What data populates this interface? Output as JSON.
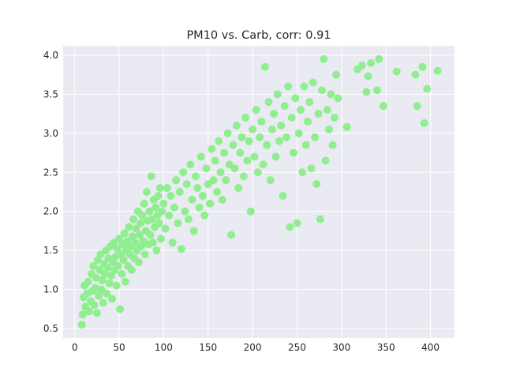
{
  "chart_data": {
    "type": "scatter",
    "title": "PM10 vs. Carb, corr: 0.91",
    "xlabel": "",
    "ylabel": "",
    "xlim": [
      -13,
      427
    ],
    "ylim": [
      0.38,
      4.12
    ],
    "xticks": [
      0,
      50,
      100,
      150,
      200,
      250,
      300,
      350,
      400
    ],
    "yticks": [
      0.5,
      1.0,
      1.5,
      2.0,
      2.5,
      3.0,
      3.5,
      4.0
    ],
    "ytick_labels": [
      "0.5",
      "1.0",
      "1.5",
      "2.0",
      "2.5",
      "3.0",
      "3.5",
      "4.0"
    ],
    "grid": true,
    "legend": "none",
    "colors": {
      "marker": "#90ee90",
      "plot_background": "#eaeaf2",
      "grid": "#ffffff",
      "text": "#262626"
    },
    "series": [
      {
        "points": [
          [
            8,
            0.55
          ],
          [
            9,
            0.68
          ],
          [
            10,
            0.9
          ],
          [
            11,
            1.05
          ],
          [
            12,
            0.78
          ],
          [
            14,
            0.95
          ],
          [
            15,
            1.1
          ],
          [
            16,
            0.72
          ],
          [
            18,
            0.85
          ],
          [
            19,
            1.2
          ],
          [
            20,
            0.98
          ],
          [
            21,
            1.3
          ],
          [
            22,
            0.8
          ],
          [
            23,
            1.02
          ],
          [
            24,
            1.15
          ],
          [
            25,
            0.7
          ],
          [
            26,
            1.38
          ],
          [
            27,
            0.92
          ],
          [
            28,
            1.25
          ],
          [
            29,
            1.45
          ],
          [
            30,
            1.0
          ],
          [
            31,
            1.12
          ],
          [
            32,
            0.83
          ],
          [
            33,
            1.33
          ],
          [
            34,
            1.2
          ],
          [
            35,
            1.5
          ],
          [
            36,
            0.95
          ],
          [
            37,
            1.28
          ],
          [
            38,
            1.4
          ],
          [
            39,
            1.08
          ],
          [
            40,
            1.55
          ],
          [
            41,
            1.18
          ],
          [
            42,
            0.88
          ],
          [
            43,
            1.35
          ],
          [
            44,
            1.6
          ],
          [
            45,
            1.25
          ],
          [
            46,
            1.42
          ],
          [
            47,
            1.05
          ],
          [
            48,
            1.52
          ],
          [
            49,
            1.3
          ],
          [
            50,
            1.65
          ],
          [
            51,
            0.75
          ],
          [
            52,
            1.45
          ],
          [
            53,
            1.2
          ],
          [
            54,
            1.58
          ],
          [
            55,
            1.38
          ],
          [
            56,
            1.72
          ],
          [
            57,
            1.1
          ],
          [
            58,
            1.5
          ],
          [
            59,
            1.62
          ],
          [
            60,
            1.3
          ],
          [
            61,
            1.8
          ],
          [
            62,
            1.45
          ],
          [
            63,
            1.55
          ],
          [
            64,
            1.25
          ],
          [
            65,
            1.68
          ],
          [
            66,
            1.9
          ],
          [
            67,
            1.4
          ],
          [
            68,
            1.6
          ],
          [
            69,
            1.78
          ],
          [
            70,
            1.5
          ],
          [
            71,
            2.0
          ],
          [
            72,
            1.35
          ],
          [
            73,
            1.7
          ],
          [
            74,
            1.85
          ],
          [
            75,
            1.55
          ],
          [
            76,
            1.95
          ],
          [
            77,
            1.62
          ],
          [
            78,
            2.1
          ],
          [
            79,
            1.45
          ],
          [
            80,
            1.75
          ],
          [
            81,
            2.25
          ],
          [
            82,
            1.88
          ],
          [
            83,
            1.58
          ],
          [
            84,
            2.0
          ],
          [
            85,
            1.7
          ],
          [
            86,
            2.45
          ],
          [
            87,
            1.9
          ],
          [
            88,
            1.6
          ],
          [
            89,
            2.15
          ],
          [
            90,
            1.8
          ],
          [
            91,
            2.05
          ],
          [
            92,
            1.5
          ],
          [
            93,
            1.95
          ],
          [
            94,
            2.2
          ],
          [
            95,
            1.85
          ],
          [
            96,
            2.3
          ],
          [
            97,
            1.65
          ],
          [
            98,
            2.0
          ],
          [
            100,
            2.1
          ],
          [
            102,
            1.78
          ],
          [
            104,
            2.3
          ],
          [
            106,
            1.95
          ],
          [
            108,
            2.2
          ],
          [
            110,
            1.6
          ],
          [
            112,
            2.05
          ],
          [
            114,
            2.4
          ],
          [
            116,
            1.85
          ],
          [
            118,
            2.25
          ],
          [
            120,
            1.52
          ],
          [
            122,
            2.5
          ],
          [
            124,
            2.0
          ],
          [
            126,
            2.35
          ],
          [
            128,
            1.9
          ],
          [
            130,
            2.6
          ],
          [
            132,
            2.15
          ],
          [
            134,
            1.75
          ],
          [
            136,
            2.45
          ],
          [
            138,
            2.3
          ],
          [
            140,
            2.05
          ],
          [
            142,
            2.7
          ],
          [
            144,
            2.2
          ],
          [
            146,
            1.95
          ],
          [
            148,
            2.55
          ],
          [
            150,
            2.35
          ],
          [
            152,
            2.1
          ],
          [
            154,
            2.8
          ],
          [
            156,
            2.4
          ],
          [
            158,
            2.65
          ],
          [
            160,
            2.25
          ],
          [
            162,
            2.9
          ],
          [
            164,
            2.5
          ],
          [
            166,
            2.15
          ],
          [
            168,
            2.75
          ],
          [
            170,
            2.4
          ],
          [
            172,
            3.0
          ],
          [
            174,
            2.6
          ],
          [
            176,
            1.7
          ],
          [
            178,
            2.85
          ],
          [
            180,
            2.55
          ],
          [
            182,
            3.1
          ],
          [
            184,
            2.3
          ],
          [
            186,
            2.75
          ],
          [
            188,
            2.95
          ],
          [
            190,
            2.45
          ],
          [
            192,
            3.2
          ],
          [
            194,
            2.65
          ],
          [
            196,
            2.9
          ],
          [
            198,
            2.0
          ],
          [
            200,
            3.05
          ],
          [
            202,
            2.7
          ],
          [
            204,
            3.3
          ],
          [
            206,
            2.5
          ],
          [
            208,
            2.95
          ],
          [
            210,
            3.15
          ],
          [
            212,
            2.6
          ],
          [
            214,
            3.85
          ],
          [
            216,
            2.85
          ],
          [
            218,
            3.4
          ],
          [
            220,
            2.4
          ],
          [
            222,
            3.05
          ],
          [
            224,
            3.25
          ],
          [
            226,
            2.7
          ],
          [
            228,
            3.5
          ],
          [
            230,
            2.9
          ],
          [
            232,
            3.1
          ],
          [
            234,
            2.2
          ],
          [
            236,
            3.35
          ],
          [
            238,
            2.95
          ],
          [
            240,
            3.6
          ],
          [
            242,
            1.8
          ],
          [
            244,
            3.2
          ],
          [
            246,
            2.75
          ],
          [
            248,
            3.45
          ],
          [
            250,
            1.85
          ],
          [
            252,
            3.0
          ],
          [
            254,
            3.3
          ],
          [
            256,
            2.5
          ],
          [
            258,
            3.6
          ],
          [
            260,
            2.85
          ],
          [
            262,
            3.15
          ],
          [
            264,
            3.4
          ],
          [
            266,
            2.55
          ],
          [
            268,
            3.65
          ],
          [
            270,
            2.95
          ],
          [
            272,
            2.35
          ],
          [
            274,
            3.25
          ],
          [
            276,
            1.9
          ],
          [
            278,
            3.55
          ],
          [
            280,
            3.95
          ],
          [
            282,
            2.65
          ],
          [
            284,
            3.3
          ],
          [
            286,
            3.05
          ],
          [
            288,
            3.5
          ],
          [
            290,
            2.85
          ],
          [
            292,
            3.2
          ],
          [
            294,
            3.75
          ],
          [
            296,
            3.45
          ],
          [
            306,
            3.08
          ],
          [
            318,
            3.82
          ],
          [
            323,
            3.87
          ],
          [
            328,
            3.53
          ],
          [
            330,
            3.73
          ],
          [
            333,
            3.9
          ],
          [
            340,
            3.55
          ],
          [
            342,
            3.95
          ],
          [
            347,
            3.35
          ],
          [
            362,
            3.79
          ],
          [
            383,
            3.75
          ],
          [
            385,
            3.35
          ],
          [
            391,
            3.85
          ],
          [
            393,
            3.13
          ],
          [
            396,
            3.57
          ],
          [
            408,
            3.8
          ]
        ]
      }
    ]
  }
}
